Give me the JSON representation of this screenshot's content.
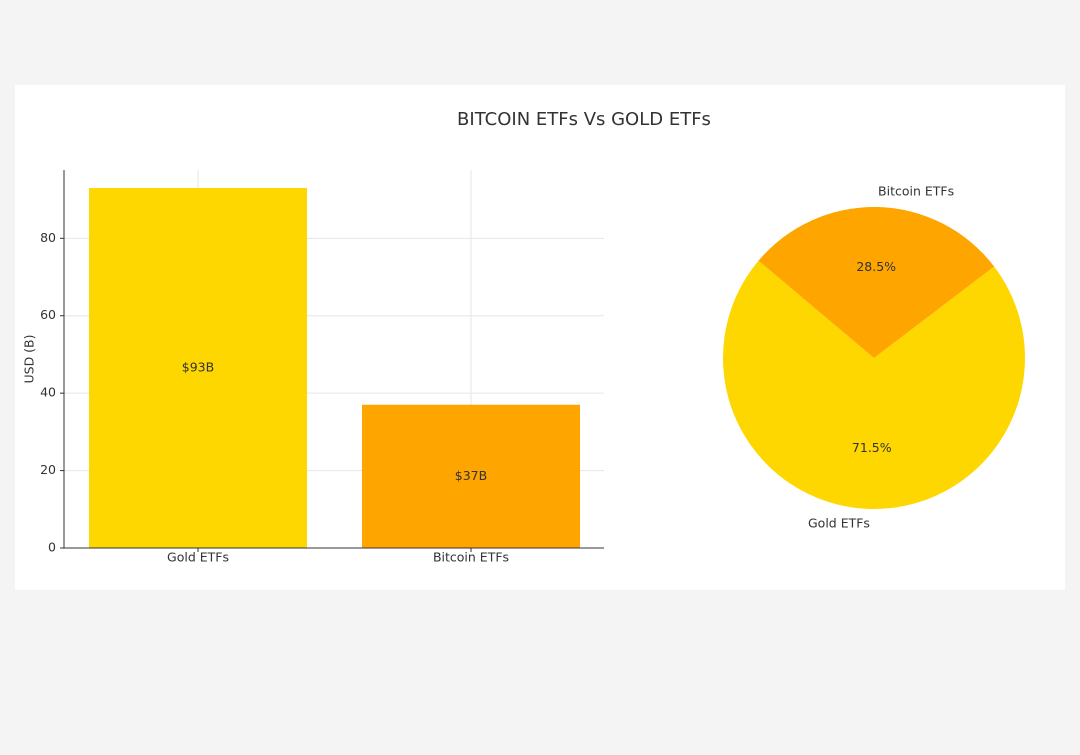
{
  "title": "BITCOIN ETFs Vs GOLD ETFs",
  "chart_data": [
    {
      "type": "bar",
      "ylabel": "USD (B)",
      "categories": [
        "Gold ETFs",
        "Bitcoin ETFs"
      ],
      "values": [
        93,
        37
      ],
      "value_labels": [
        "$93B",
        "$37B"
      ],
      "colors": [
        "#FFD700",
        "#FFA500"
      ],
      "ylim": [
        0,
        97.65
      ],
      "yticks": [
        0,
        20,
        40,
        60,
        80
      ],
      "grid": true
    },
    {
      "type": "pie",
      "categories": [
        "Gold ETFs",
        "Bitcoin ETFs"
      ],
      "values": [
        71.5,
        28.5
      ],
      "value_labels": [
        "71.5%",
        "28.5%"
      ],
      "colors": [
        "#FFD700",
        "#FFA500"
      ]
    }
  ]
}
